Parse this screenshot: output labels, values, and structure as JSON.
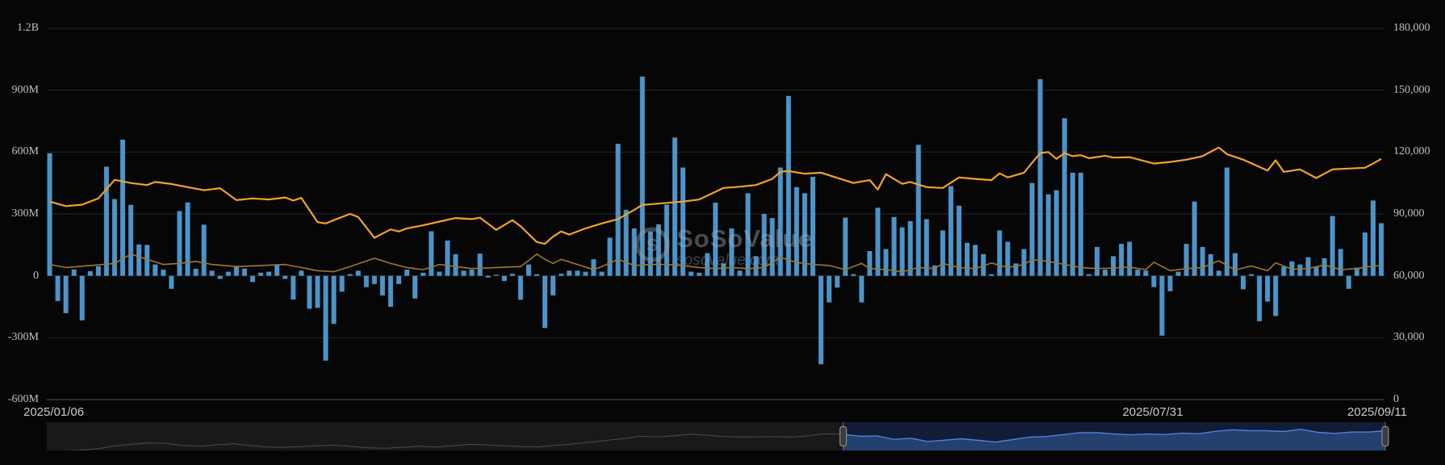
{
  "watermark": {
    "brand": "SoSoValue",
    "domain": "sosovalue.com",
    "logo_letter": "S"
  },
  "colors": {
    "background": "#060606",
    "bar": "#4b94ca",
    "price_line": "#f5a02c",
    "secondary_line": "#a2762f",
    "gridline": "#262626",
    "axis_line": "#4d4d4d",
    "tick_text": "#bcc1c9",
    "brush_track": "#191919",
    "brush_track_line": "#4c4c4c",
    "brush_selected_bg": "#111d36",
    "brush_selected_area": "#23406e",
    "brush_selected_line": "#4e82d8",
    "brush_handle_fill": "#3c3c3c",
    "brush_handle_border": "#8a8a8a"
  },
  "chart_data": {
    "type": "bar",
    "title": "",
    "xlabel": "",
    "ylabel": "",
    "grid": true,
    "legend_position": "none",
    "left_axis": {
      "unit": "USD",
      "min": -600000000,
      "max": 1200000000,
      "ticks": [
        {
          "value": 1200,
          "label": "1.2B"
        },
        {
          "value": 900,
          "label": "900M"
        },
        {
          "value": 600,
          "label": "600M"
        },
        {
          "value": 300,
          "label": "300M"
        },
        {
          "value": 0,
          "label": "0"
        },
        {
          "value": -300,
          "label": "-300M"
        },
        {
          "value": -600,
          "label": "-600M"
        }
      ]
    },
    "right_axis": {
      "min": 0,
      "max": 180000,
      "ticks": [
        {
          "value": 180000,
          "label": "180,000"
        },
        {
          "value": 150000,
          "label": "150,000"
        },
        {
          "value": 120000,
          "label": "120,000"
        },
        {
          "value": 90000,
          "label": "90,000"
        },
        {
          "value": 60000,
          "label": "60,000"
        },
        {
          "value": 30000,
          "label": "30,000"
        },
        {
          "value": 0,
          "label": "0"
        }
      ]
    },
    "x_axis": {
      "labels": [
        "2025/01/06",
        "2025/07/31",
        "2025/09/11"
      ]
    },
    "series": [
      {
        "name": "daily_net_flow_bars",
        "type": "bar",
        "axis": "left",
        "unit": "USD millions",
        "values": [
          594,
          -122,
          -181,
          31,
          -216,
          23,
          47,
          529,
          372,
          660,
          344,
          152,
          150,
          55,
          30,
          -63,
          314,
          356,
          34,
          248,
          25,
          -15,
          20,
          45,
          35,
          -30,
          15,
          20,
          55,
          -15,
          -115,
          25,
          -160,
          -155,
          -411,
          -233,
          -77,
          8,
          25,
          -55,
          -40,
          -95,
          -150,
          -40,
          30,
          -110,
          15,
          216,
          20,
          171,
          105,
          25,
          30,
          108,
          -8,
          5,
          -25,
          10,
          -116,
          55,
          8,
          -253,
          -95,
          10,
          25,
          25,
          20,
          80,
          20,
          185,
          640,
          320,
          230,
          966,
          215,
          250,
          345,
          670,
          525,
          20,
          15,
          110,
          355,
          60,
          230,
          25,
          400,
          95,
          300,
          280,
          525,
          872,
          430,
          400,
          480,
          -429,
          -129,
          -57,
          282,
          8,
          -129,
          120,
          330,
          130,
          285,
          235,
          265,
          635,
          275,
          50,
          220,
          435,
          340,
          160,
          150,
          105,
          8,
          220,
          165,
          60,
          130,
          450,
          953,
          395,
          415,
          764,
          500,
          500,
          8,
          140,
          30,
          95,
          155,
          165,
          30,
          25,
          -55,
          -290,
          -75,
          20,
          155,
          360,
          140,
          105,
          25,
          525,
          110,
          -65,
          8,
          -220,
          -125,
          -195,
          45,
          70,
          55,
          90,
          45,
          85,
          290,
          130,
          -63,
          40,
          210,
          365,
          255
        ]
      },
      {
        "name": "price_line",
        "type": "line",
        "axis": "right",
        "unit": "USD",
        "points": [
          [
            0,
            96000
          ],
          [
            2,
            93800
          ],
          [
            4,
            94500
          ],
          [
            6,
            97500
          ],
          [
            8,
            106500
          ],
          [
            10,
            105000
          ],
          [
            12,
            104000
          ],
          [
            13,
            105500
          ],
          [
            15,
            104500
          ],
          [
            17,
            103000
          ],
          [
            19,
            101500
          ],
          [
            21,
            102500
          ],
          [
            23,
            96700
          ],
          [
            25,
            97500
          ],
          [
            27,
            97000
          ],
          [
            29,
            98000
          ],
          [
            30,
            96500
          ],
          [
            31,
            97800
          ],
          [
            33,
            86000
          ],
          [
            34,
            85400
          ],
          [
            35,
            87000
          ],
          [
            37,
            90000
          ],
          [
            38,
            88500
          ],
          [
            40,
            78400
          ],
          [
            41,
            80500
          ],
          [
            42,
            82500
          ],
          [
            43,
            81500
          ],
          [
            44,
            83000
          ],
          [
            46,
            84500
          ],
          [
            48,
            86300
          ],
          [
            50,
            88000
          ],
          [
            52,
            87500
          ],
          [
            53,
            88200
          ],
          [
            55,
            82300
          ],
          [
            57,
            87000
          ],
          [
            58,
            84000
          ],
          [
            60,
            76400
          ],
          [
            61,
            75500
          ],
          [
            62,
            79000
          ],
          [
            63,
            81500
          ],
          [
            64,
            80000
          ],
          [
            66,
            83000
          ],
          [
            68,
            85400
          ],
          [
            70,
            87500
          ],
          [
            72,
            92000
          ],
          [
            73,
            94400
          ],
          [
            75,
            95000
          ],
          [
            78,
            96000
          ],
          [
            80,
            97000
          ],
          [
            83,
            102600
          ],
          [
            85,
            103200
          ],
          [
            87,
            104000
          ],
          [
            89,
            107000
          ],
          [
            90,
            110400
          ],
          [
            91,
            110800
          ],
          [
            93,
            109500
          ],
          [
            95,
            110000
          ],
          [
            97,
            107500
          ],
          [
            99,
            105000
          ],
          [
            101,
            106400
          ],
          [
            102,
            101800
          ],
          [
            103,
            109300
          ],
          [
            105,
            104600
          ],
          [
            106,
            105500
          ],
          [
            108,
            103000
          ],
          [
            110,
            102600
          ],
          [
            112,
            107700
          ],
          [
            114,
            107000
          ],
          [
            116,
            106400
          ],
          [
            117,
            109700
          ],
          [
            118,
            107700
          ],
          [
            120,
            110000
          ],
          [
            121,
            114800
          ],
          [
            122,
            119500
          ],
          [
            123,
            120000
          ],
          [
            124,
            116700
          ],
          [
            125,
            119500
          ],
          [
            126,
            118000
          ],
          [
            127,
            118500
          ],
          [
            128,
            117000
          ],
          [
            130,
            118200
          ],
          [
            131,
            117300
          ],
          [
            133,
            117500
          ],
          [
            136,
            114400
          ],
          [
            138,
            115200
          ],
          [
            140,
            116300
          ],
          [
            142,
            118000
          ],
          [
            144,
            122200
          ],
          [
            145,
            119000
          ],
          [
            147,
            116300
          ],
          [
            149,
            112800
          ],
          [
            150,
            111000
          ],
          [
            151,
            116000
          ],
          [
            152,
            110400
          ],
          [
            154,
            111600
          ],
          [
            156,
            107400
          ],
          [
            158,
            111600
          ],
          [
            160,
            112000
          ],
          [
            162,
            112400
          ],
          [
            163,
            114400
          ],
          [
            164,
            116700
          ]
        ]
      },
      {
        "name": "secondary_line",
        "type": "line",
        "axis": "left",
        "unit": "USD millions",
        "points": [
          [
            0,
            55
          ],
          [
            2,
            40
          ],
          [
            5,
            50
          ],
          [
            8,
            60
          ],
          [
            10,
            105
          ],
          [
            12,
            80
          ],
          [
            14,
            55
          ],
          [
            16,
            60
          ],
          [
            18,
            70
          ],
          [
            20,
            55
          ],
          [
            23,
            45
          ],
          [
            26,
            50
          ],
          [
            29,
            55
          ],
          [
            31,
            40
          ],
          [
            33,
            25
          ],
          [
            35,
            20
          ],
          [
            37,
            45
          ],
          [
            40,
            85
          ],
          [
            42,
            60
          ],
          [
            44,
            40
          ],
          [
            46,
            30
          ],
          [
            48,
            55
          ],
          [
            50,
            45
          ],
          [
            52,
            35
          ],
          [
            55,
            40
          ],
          [
            58,
            45
          ],
          [
            60,
            105
          ],
          [
            61,
            80
          ],
          [
            62,
            60
          ],
          [
            63,
            80
          ],
          [
            65,
            55
          ],
          [
            67,
            30
          ],
          [
            68,
            45
          ],
          [
            70,
            80
          ],
          [
            72,
            50
          ],
          [
            74,
            55
          ],
          [
            76,
            55
          ],
          [
            78,
            50
          ],
          [
            80,
            40
          ],
          [
            82,
            35
          ],
          [
            84,
            40
          ],
          [
            86,
            35
          ],
          [
            88,
            40
          ],
          [
            90,
            90
          ],
          [
            92,
            65
          ],
          [
            94,
            55
          ],
          [
            96,
            50
          ],
          [
            98,
            30
          ],
          [
            100,
            60
          ],
          [
            101,
            35
          ],
          [
            103,
            30
          ],
          [
            105,
            20
          ],
          [
            107,
            40
          ],
          [
            109,
            35
          ],
          [
            110,
            60
          ],
          [
            112,
            40
          ],
          [
            114,
            35
          ],
          [
            116,
            62
          ],
          [
            118,
            40
          ],
          [
            120,
            55
          ],
          [
            121,
            78
          ],
          [
            123,
            70
          ],
          [
            125,
            55
          ],
          [
            127,
            40
          ],
          [
            129,
            35
          ],
          [
            131,
            38
          ],
          [
            133,
            42
          ],
          [
            135,
            30
          ],
          [
            136,
            66
          ],
          [
            138,
            25
          ],
          [
            140,
            35
          ],
          [
            142,
            40
          ],
          [
            144,
            73
          ],
          [
            146,
            28
          ],
          [
            148,
            48
          ],
          [
            150,
            25
          ],
          [
            151,
            63
          ],
          [
            153,
            32
          ],
          [
            155,
            35
          ],
          [
            157,
            53
          ],
          [
            159,
            30
          ],
          [
            161,
            35
          ],
          [
            163,
            48
          ],
          [
            164,
            50
          ]
        ]
      }
    ],
    "navigator": {
      "selection_start_fraction": 0.595,
      "selection_end_fraction": 1.0,
      "line_values_thousands": [
        43,
        44,
        47,
        52,
        62,
        68,
        73,
        71,
        64,
        61,
        66,
        70,
        64,
        58,
        57,
        60,
        63,
        65,
        60,
        55,
        54,
        57,
        61,
        58,
        63,
        68,
        66,
        62,
        60,
        59,
        64,
        69,
        75,
        82,
        88,
        97,
        95,
        99,
        104,
        100,
        96,
        94,
        95,
        96,
        94,
        99,
        106,
        104,
        97,
        98,
        86,
        90,
        78,
        83,
        88,
        82,
        76,
        85,
        94,
        96,
        103,
        110,
        110,
        105,
        102,
        105,
        103,
        108,
        106,
        115,
        120,
        117,
        117,
        114,
        122,
        111,
        107,
        112,
        112,
        117
      ]
    }
  }
}
